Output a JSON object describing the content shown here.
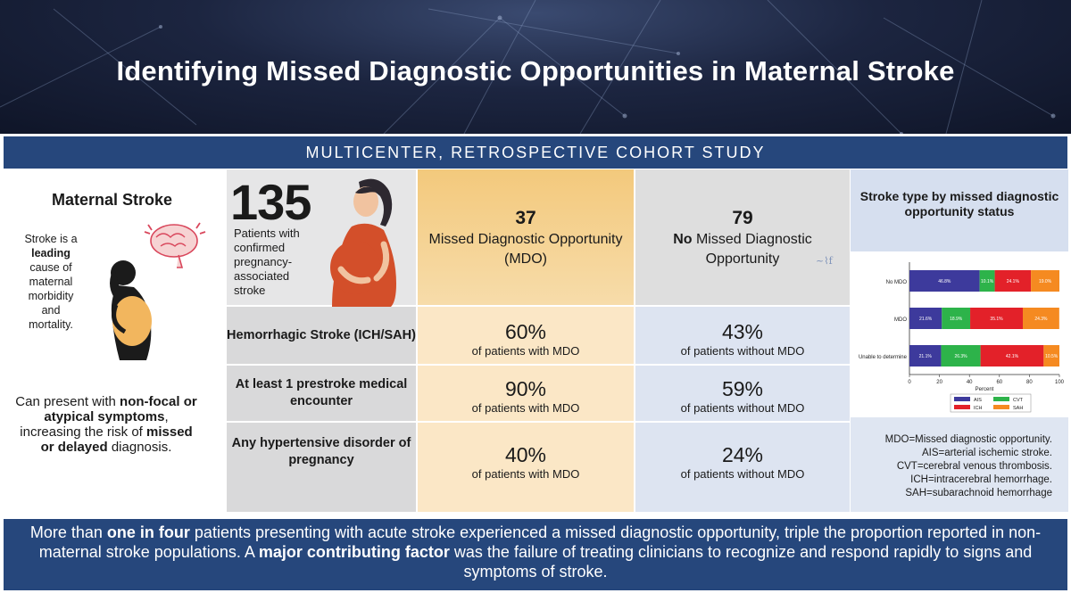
{
  "header": {
    "title": "Identifying Missed Diagnostic Opportunities in Maternal Stroke",
    "study_type": "MULTICENTER, RETROSPECTIVE COHORT STUDY"
  },
  "left_panel": {
    "title": "Maternal Stroke",
    "desc_pre": "Stroke is a",
    "desc_bold": "leading",
    "desc_post": "cause of maternal morbidity and mortality.",
    "bottom_pre": "Can present with",
    "bottom_bold1": "non-focal or atypical symptoms",
    "bottom_mid": ", increasing the risk of",
    "bottom_bold2": "missed or delayed",
    "bottom_post": "diagnosis."
  },
  "table": {
    "total": {
      "count": "135",
      "description": "Patients with confirmed pregnancy-associated stroke"
    },
    "mdo": {
      "count": "37",
      "label": "Missed Diagnostic Opportunity (MDO)"
    },
    "no_mdo": {
      "count": "79",
      "label_bold": "No",
      "label": "Missed Diagnostic Opportunity"
    },
    "rows": [
      {
        "label": "Hemorrhagic Stroke (ICH/SAH)",
        "mdo_value": "60%",
        "mdo_sub": "of patients with MDO",
        "no_mdo_value": "43%",
        "no_mdo_sub": "of patients without MDO"
      },
      {
        "label": "At least 1 prestroke medical encounter",
        "mdo_value": "90%",
        "mdo_sub": "of patients with MDO",
        "no_mdo_value": "59%",
        "no_mdo_sub": "of patients without MDO"
      },
      {
        "label": "Any hypertensive disorder of pregnancy",
        "mdo_value": "40%",
        "mdo_sub": "of patients with MDO",
        "no_mdo_value": "24%",
        "no_mdo_sub": "of patients without MDO"
      }
    ]
  },
  "right_panel": {
    "title": "Stroke type by missed diagnostic opportunity status",
    "abbreviations": [
      "MDO=Missed diagnostic opportunity.",
      "AIS=arterial ischemic stroke.",
      "CVT=cerebral venous thrombosis.",
      "ICH=intracerebral hemorrhage.",
      "SAH=subarachnoid hemorrhage"
    ]
  },
  "chart_data": {
    "type": "bar",
    "orientation": "horizontal",
    "stacked": true,
    "categories": [
      "No MDO",
      "MDO",
      "Unable to determine"
    ],
    "series": [
      {
        "name": "AIS",
        "color": "#3d3a9c",
        "values": [
          46.8,
          21.6,
          21.1
        ]
      },
      {
        "name": "CVT",
        "color": "#2db34a",
        "values": [
          10.1,
          18.9,
          26.3
        ]
      },
      {
        "name": "ICH",
        "color": "#e32129",
        "values": [
          24.1,
          35.1,
          42.1
        ]
      },
      {
        "name": "SAH",
        "color": "#f58a21",
        "values": [
          19.0,
          24.3,
          10.5
        ]
      }
    ],
    "labels": [
      [
        "46.8%",
        "10.1%",
        "24.1%",
        "19.0%"
      ],
      [
        "21.6%",
        "18.9%",
        "35.1%",
        "24.3%"
      ],
      [
        "21.1%",
        "26.3%",
        "42.1%",
        "10.5%"
      ]
    ],
    "xlabel": "Percent",
    "xlim": [
      0,
      100
    ],
    "xticks": [
      0,
      20,
      40,
      60,
      80,
      100
    ],
    "legend_position": "bottom"
  },
  "footer": {
    "t1": "More than",
    "b1": "one in four",
    "t2": "patients presenting with acute stroke experienced a missed diagnostic opportunity, triple the proportion reported in non-maternal stroke populations. A",
    "b2": "major contributing factor",
    "t3": "was the failure of treating clinicians to recognize and respond rapidly to signs and symptoms of stroke."
  }
}
